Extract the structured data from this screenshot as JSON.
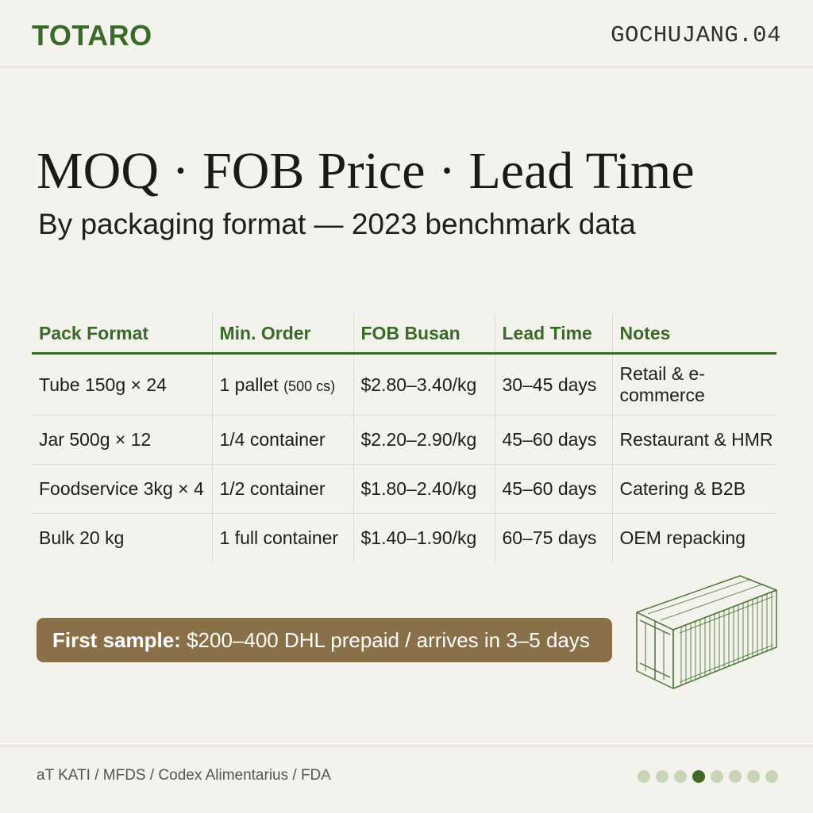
{
  "header": {
    "brand": "TOTARO",
    "code": "GOCHUJANG.04"
  },
  "title": "MOQ · FOB Price · Lead Time",
  "subtitle": "By packaging format — 2023 benchmark data",
  "table": {
    "headers": [
      "Pack Format",
      "Min. Order",
      "FOB Busan",
      "Lead Time",
      "Notes"
    ],
    "rows": [
      {
        "format": "Tube 150g × 24",
        "min_order": "1 pallet",
        "min_order_note": "(500 cs)",
        "fob": "$2.80–3.40/kg",
        "lead_time": "30–45 days",
        "notes": "Retail & e-commerce"
      },
      {
        "format": "Jar 500g × 12",
        "min_order": "1/4 container",
        "fob": "$2.20–2.90/kg",
        "lead_time": "45–60 days",
        "notes": "Restaurant & HMR"
      },
      {
        "format": "Foodservice 3kg × 4",
        "min_order": "1/2 container",
        "fob": "$1.80–2.40/kg",
        "lead_time": "45–60 days",
        "notes": "Catering & B2B"
      },
      {
        "format": "Bulk 20 kg",
        "min_order": "1 full container",
        "fob": "$1.40–1.90/kg",
        "lead_time": "60–75 days",
        "notes": "OEM repacking"
      }
    ]
  },
  "banner": {
    "label": "First sample:",
    "text": "$200–400 DHL prepaid / arrives in 3–5 days"
  },
  "footer": {
    "source": "aT KATI / MFDS / Codex Alimentarius / FDA",
    "pagination": {
      "total": 8,
      "current": 4
    }
  },
  "colors": {
    "brand_green": "#3a6a28",
    "banner_brown": "#8a7048",
    "background": "#f3f2ed",
    "dot_inactive": "#c8d4b6"
  },
  "icons": {
    "illustration": "shipping-container-icon"
  }
}
